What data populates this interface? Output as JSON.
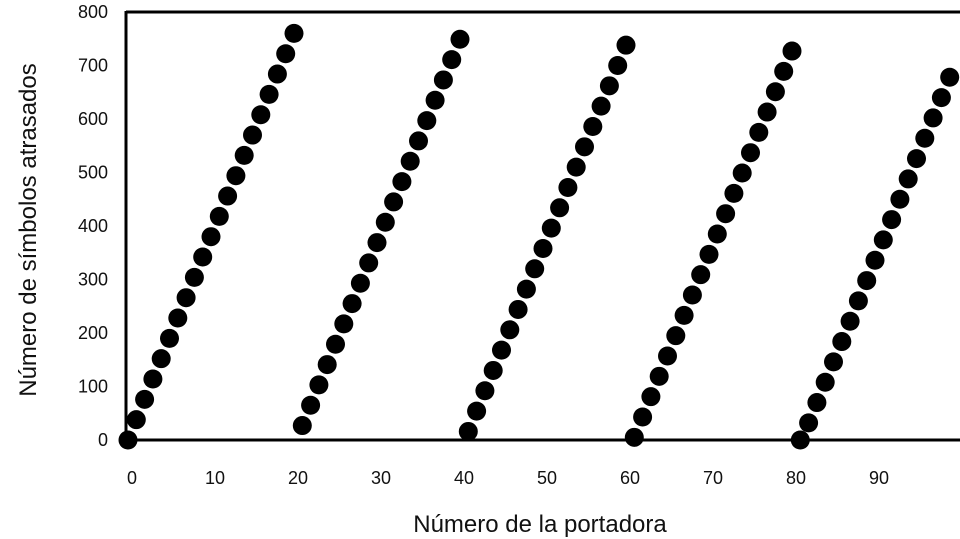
{
  "chart_data": {
    "type": "scatter",
    "title": "",
    "xlabel": "Número de la portadora",
    "ylabel": "Número de símbolos atrasados",
    "xlim": [
      0,
      100
    ],
    "ylim": [
      0,
      800
    ],
    "xticks": [
      0,
      10,
      20,
      30,
      40,
      50,
      60,
      70,
      80,
      90
    ],
    "yticks": [
      0,
      100,
      200,
      300,
      400,
      500,
      600,
      700,
      800
    ],
    "grid": false,
    "legend": "none",
    "marker_color": "#000000",
    "series": [
      {
        "x": [
          0,
          1,
          2,
          3,
          4,
          5,
          6,
          7,
          8,
          9,
          10,
          11,
          12,
          13,
          14,
          15,
          16,
          17,
          18,
          19,
          20,
          21,
          22,
          23,
          24,
          25,
          26,
          27,
          28,
          29,
          30,
          31,
          32,
          33,
          34,
          35,
          36,
          37,
          38,
          39,
          40,
          41,
          42,
          43,
          44,
          45,
          46,
          47,
          48,
          49,
          50,
          51,
          52,
          53,
          54,
          55,
          56,
          57,
          58,
          59,
          60,
          61,
          62,
          63,
          64,
          65,
          66,
          67,
          68,
          69,
          70,
          71,
          72,
          73,
          74,
          75,
          76,
          77,
          78,
          79,
          80,
          81,
          82,
          83,
          84,
          85,
          86,
          87,
          88,
          89,
          90,
          91,
          92,
          93,
          94,
          95,
          96,
          97,
          98,
          99
        ],
        "y": [
          0,
          38,
          76,
          114,
          152,
          190,
          228,
          266,
          304,
          342,
          380,
          418,
          456,
          494,
          532,
          570,
          608,
          646,
          684,
          722,
          760,
          27,
          65,
          103,
          141,
          179,
          217,
          255,
          293,
          331,
          369,
          407,
          445,
          483,
          521,
          559,
          597,
          635,
          673,
          711,
          749,
          16,
          54,
          92,
          130,
          168,
          206,
          244,
          282,
          320,
          358,
          396,
          434,
          472,
          510,
          548,
          586,
          624,
          662,
          700,
          738,
          5,
          43,
          81,
          119,
          157,
          195,
          233,
          271,
          309,
          347,
          385,
          423,
          461,
          499,
          537,
          575,
          613,
          651,
          689,
          727,
          0,
          32,
          70,
          108,
          146,
          184,
          222,
          260,
          298,
          336,
          374,
          412,
          450,
          488,
          526,
          564,
          602,
          640,
          678
        ]
      }
    ]
  }
}
